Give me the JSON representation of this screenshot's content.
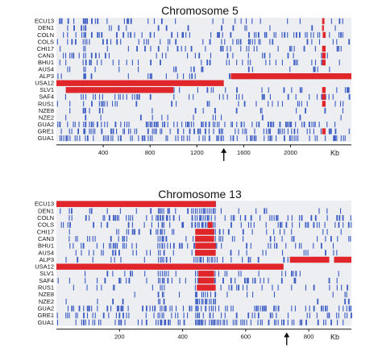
{
  "colors": {
    "snp": "#3a5bc2",
    "ibd": "#e0262a",
    "panel_bg": "#eceef2",
    "axis": "#111111"
  },
  "chart_data": [
    {
      "type": "heatmap",
      "title": "Chromosome 5",
      "x_unit_label": "Kb",
      "xlim": [
        0,
        2520
      ],
      "xticks": [
        400,
        800,
        1200,
        1600,
        2000
      ],
      "arrow_x": 1430,
      "rows": [
        "ECU13",
        "DEN1",
        "COLN",
        "COLS",
        "CHI17",
        "CAN3",
        "BHU1",
        "AUS4",
        "ALP3",
        "USA12",
        "SLV1",
        "SAF4",
        "RUS1",
        "NZE8",
        "NZE2",
        "GUA2",
        "GRE1",
        "GUA1"
      ],
      "density": [
        0.3,
        0.25,
        0.7,
        0.55,
        0.45,
        0.4,
        0.5,
        0.35,
        0.3,
        0.0,
        0.25,
        0.4,
        0.35,
        0.2,
        0.12,
        0.75,
        0.65,
        0.85
      ],
      "red_segments": [
        {
          "row": "ECU13",
          "start": 2270,
          "end": 2290
        },
        {
          "row": "DEN1",
          "start": 2270,
          "end": 2285
        },
        {
          "row": "COLN",
          "start": 2275,
          "end": 2300
        },
        {
          "row": "CHI17",
          "start": 2270,
          "end": 2300
        },
        {
          "row": "CAN3",
          "start": 2270,
          "end": 2300
        },
        {
          "row": "BHU1",
          "start": 2270,
          "end": 2300
        },
        {
          "row": "ALP3",
          "start": 1490,
          "end": 2520
        },
        {
          "row": "USA12",
          "start": 0,
          "end": 1430
        },
        {
          "row": "SLV1",
          "start": 80,
          "end": 1000
        },
        {
          "row": "SLV1",
          "start": 2270,
          "end": 2300
        },
        {
          "row": "SAF4",
          "start": 2270,
          "end": 2300
        },
        {
          "row": "RUS1",
          "start": 2270,
          "end": 2300
        },
        {
          "row": "GRE1",
          "start": 2270,
          "end": 2300
        }
      ],
      "hotspots": [
        {
          "center": 240,
          "width": 30,
          "boost": 0.9
        }
      ]
    },
    {
      "type": "heatmap",
      "title": "Chromosome 13",
      "x_unit_label": "Kb",
      "xlim": [
        0,
        935
      ],
      "xticks": [
        200,
        400,
        600,
        800
      ],
      "arrow_x": 730,
      "rows": [
        "ECU13",
        "DEN1",
        "COLN",
        "COLS",
        "CHI17",
        "CAN3",
        "BHU1",
        "AUS4",
        "ALP3",
        "USA12",
        "SLV1",
        "SAF4",
        "RUS1",
        "NZE8",
        "NZE2",
        "GUA2",
        "GRE1",
        "GUA1"
      ],
      "density": [
        0.0,
        0.3,
        0.7,
        0.55,
        0.35,
        0.4,
        0.5,
        0.35,
        0.3,
        0.0,
        0.25,
        0.35,
        0.35,
        0.18,
        0.12,
        0.75,
        0.6,
        0.8
      ],
      "red_segments": [
        {
          "row": "ECU13",
          "start": 0,
          "end": 505
        },
        {
          "row": "COLS",
          "start": 480,
          "end": 495
        },
        {
          "row": "CHI17",
          "start": 440,
          "end": 500
        },
        {
          "row": "CAN3",
          "start": 440,
          "end": 500
        },
        {
          "row": "BHU1",
          "start": 440,
          "end": 505
        },
        {
          "row": "AUS4",
          "start": 440,
          "end": 505
        },
        {
          "row": "ALP3",
          "start": 740,
          "end": 865
        },
        {
          "row": "ALP3",
          "start": 880,
          "end": 935
        },
        {
          "row": "USA12",
          "start": 0,
          "end": 720
        },
        {
          "row": "SLV1",
          "start": 450,
          "end": 500
        },
        {
          "row": "SAF4",
          "start": 450,
          "end": 500
        },
        {
          "row": "RUS1",
          "start": 445,
          "end": 505
        }
      ],
      "hotspots": [
        {
          "center": 330,
          "width": 10,
          "boost": 0.9
        },
        {
          "center": 470,
          "width": 60,
          "boost": 0.8
        }
      ]
    }
  ]
}
